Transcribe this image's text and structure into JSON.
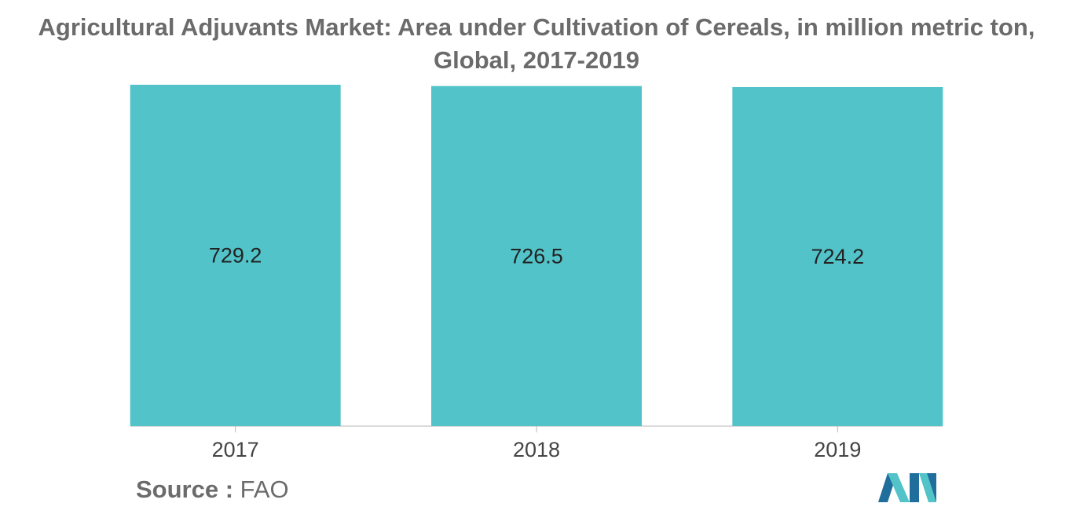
{
  "header": {
    "title_line1": "Agricultural Adjuvants Market: Area under Cultivation of Cereals, in million metric ton,",
    "title_line2": "Global, 2017-2019"
  },
  "footer": {
    "source_label": "Source :",
    "source_value": "FAO"
  },
  "colors": {
    "bar": "#52c3c9",
    "axis": "#b7b7b7",
    "tick_label": "#444444",
    "data_label": "#222222",
    "logo_dark": "#1f6e9c",
    "logo_light": "#52c3c9"
  },
  "chart_data": {
    "type": "bar",
    "categories": [
      "2017",
      "2018",
      "2019"
    ],
    "values": [
      729.2,
      726.5,
      724.2
    ],
    "data_labels": [
      "729.2",
      "726.5",
      "724.2"
    ],
    "title": "Agricultural Adjuvants Market: Area under Cultivation of Cereals, in million metric ton, Global, 2017-2019",
    "xlabel": "",
    "ylabel": "",
    "ylim": [
      0,
      729.2
    ],
    "grid": false,
    "legend": "none"
  }
}
